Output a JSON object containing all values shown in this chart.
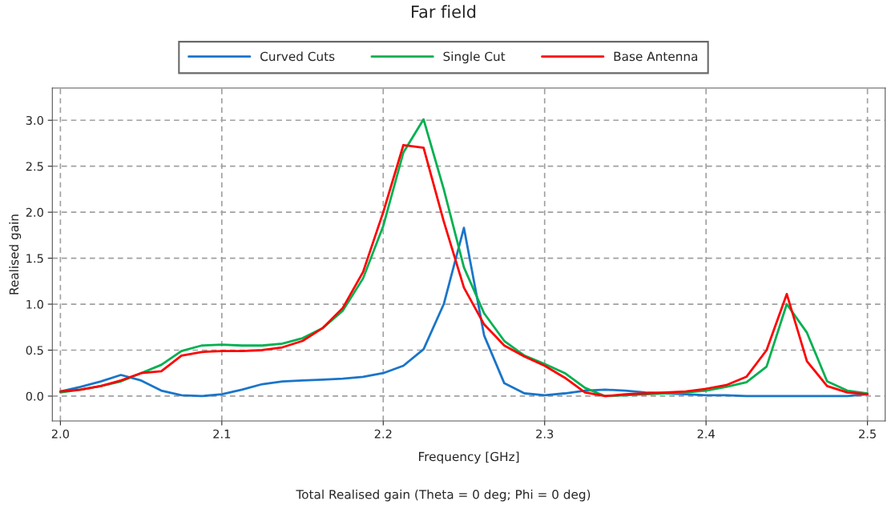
{
  "chart_data": {
    "type": "line",
    "title": "Far field",
    "xlabel": "Frequency [GHz]",
    "ylabel": "Realised gain",
    "annotations": [
      "Total Realised gain (Theta = 0 deg; Phi = 0 deg)"
    ],
    "x": [
      2.0,
      2.0125,
      2.025,
      2.0375,
      2.05,
      2.0625,
      2.075,
      2.0875,
      2.1,
      2.1125,
      2.125,
      2.1375,
      2.15,
      2.1625,
      2.175,
      2.1875,
      2.2,
      2.2125,
      2.225,
      2.2375,
      2.25,
      2.2625,
      2.275,
      2.2875,
      2.3,
      2.3125,
      2.325,
      2.3375,
      2.35,
      2.3625,
      2.375,
      2.3875,
      2.4,
      2.4125,
      2.425,
      2.4375,
      2.45,
      2.4625,
      2.475,
      2.4875,
      2.5
    ],
    "series": [
      {
        "name": "Curved Cuts",
        "color": "#1a75c9",
        "values": [
          0.05,
          0.1,
          0.16,
          0.23,
          0.17,
          0.06,
          0.01,
          0.0,
          0.02,
          0.07,
          0.13,
          0.16,
          0.17,
          0.18,
          0.19,
          0.21,
          0.25,
          0.33,
          0.51,
          1.0,
          1.83,
          0.66,
          0.14,
          0.03,
          0.01,
          0.03,
          0.06,
          0.07,
          0.06,
          0.04,
          0.03,
          0.02,
          0.01,
          0.01,
          0.0,
          0.0,
          0.0,
          0.0,
          0.0,
          0.0,
          0.02
        ]
      },
      {
        "name": "Single Cut",
        "color": "#00b050",
        "values": [
          0.04,
          0.07,
          0.11,
          0.16,
          0.25,
          0.34,
          0.49,
          0.55,
          0.56,
          0.55,
          0.55,
          0.57,
          0.63,
          0.74,
          0.93,
          1.28,
          1.85,
          2.65,
          3.01,
          2.25,
          1.4,
          0.9,
          0.6,
          0.44,
          0.35,
          0.25,
          0.09,
          0.0,
          0.01,
          0.02,
          0.03,
          0.04,
          0.06,
          0.1,
          0.15,
          0.32,
          1.0,
          0.69,
          0.16,
          0.06,
          0.03
        ]
      },
      {
        "name": "Base Antenna",
        "color": "#ff0000",
        "values": [
          0.05,
          0.07,
          0.11,
          0.17,
          0.25,
          0.27,
          0.44,
          0.48,
          0.49,
          0.49,
          0.5,
          0.53,
          0.6,
          0.74,
          0.96,
          1.35,
          2.0,
          2.73,
          2.7,
          1.9,
          1.18,
          0.78,
          0.55,
          0.43,
          0.33,
          0.2,
          0.04,
          0.0,
          0.02,
          0.03,
          0.04,
          0.05,
          0.08,
          0.12,
          0.21,
          0.5,
          1.11,
          0.38,
          0.11,
          0.04,
          0.02
        ]
      }
    ],
    "xlim": [
      1.995,
      2.511
    ],
    "xticks": [
      {
        "value": 2.0,
        "label": "2.0"
      },
      2.1,
      2.2,
      2.3,
      2.4,
      2.5
    ],
    "ylim": [
      -0.27,
      3.35
    ],
    "yticks": [
      {
        "value": 0,
        "label": "0.0"
      },
      0.5,
      {
        "value": 1,
        "label": "1.0"
      },
      1.5,
      {
        "value": 2,
        "label": "2.0"
      },
      2.5,
      {
        "value": 3,
        "label": "3.0"
      }
    ],
    "grid": true,
    "legend": "top",
    "line_style": "solid",
    "marker": "none"
  }
}
